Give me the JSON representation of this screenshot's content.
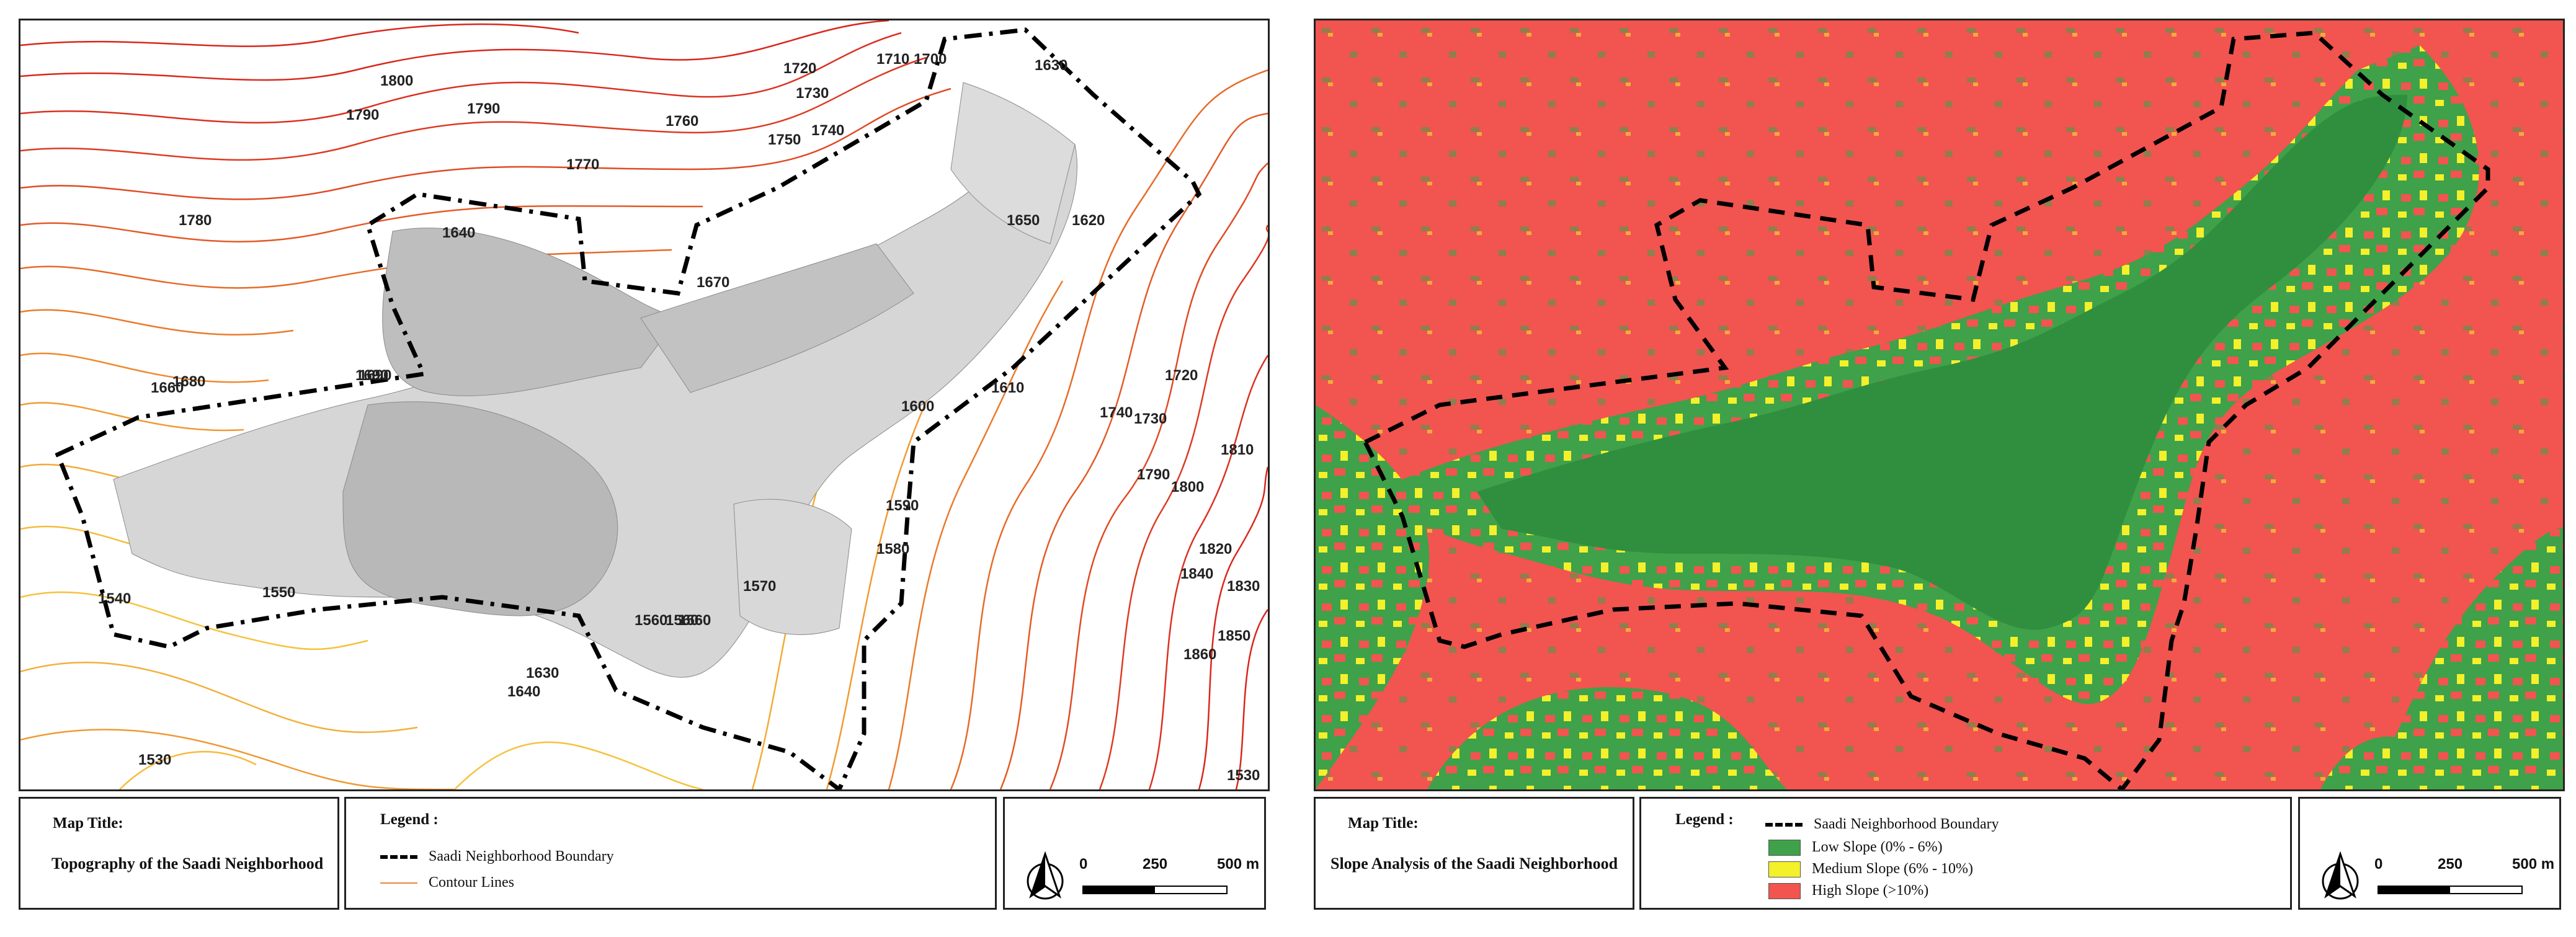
{
  "left_map": {
    "map_title_label": "Map Title:",
    "map_title": "Topography of the Saadi Neighborhood",
    "legend_label": "Legend :",
    "legend_items": [
      {
        "label": "Saadi Neighborhood Boundary",
        "symbol": "dashed-line"
      },
      {
        "label": "Contour Lines",
        "symbol": "line",
        "color": "#e8863c"
      }
    ],
    "scale": {
      "start": "0",
      "mid": "250",
      "end": "500 m"
    },
    "contour_labels": [
      "1800",
      "1790",
      "1790",
      "1780",
      "1770",
      "1760",
      "1750",
      "1740",
      "1730",
      "1720",
      "1710",
      "1700",
      "1690",
      "1680",
      "1670",
      "1660",
      "1650",
      "1640",
      "1630",
      "1620",
      "1610",
      "1600",
      "1590",
      "1580",
      "1570",
      "1560",
      "1550",
      "1540",
      "1530",
      "1800",
      "1810",
      "1820",
      "1830",
      "1840",
      "1850",
      "1860",
      "1790",
      "1730",
      "1720",
      "1740",
      "1690",
      "1640",
      "1630",
      "1560",
      "1560",
      "1530"
    ]
  },
  "right_map": {
    "map_title_label": "Map Title:",
    "map_title": "Slope Analysis of the Saadi Neighborhood",
    "legend_label": "Legend :",
    "legend_items": [
      {
        "label": "Saadi Neighborhood Boundary",
        "symbol": "dashed-line"
      },
      {
        "label": "Low Slope (0% - 6%)",
        "color": "#3fa14a"
      },
      {
        "label": "Medium Slope (6% - 10%)",
        "color": "#f4f02a"
      },
      {
        "label": "High Slope (>10%)",
        "color": "#f25450"
      }
    ],
    "scale": {
      "start": "0",
      "mid": "250",
      "end": "500 m"
    }
  },
  "colors": {
    "contour_high": "#d9261c",
    "contour_mid": "#ef7a2a",
    "contour_low": "#f4c23a",
    "buildings": "#bdbdbd",
    "boundary": "#000000",
    "low_slope": "#3fa14a",
    "medium_slope": "#f4f02a",
    "high_slope": "#f25450"
  }
}
